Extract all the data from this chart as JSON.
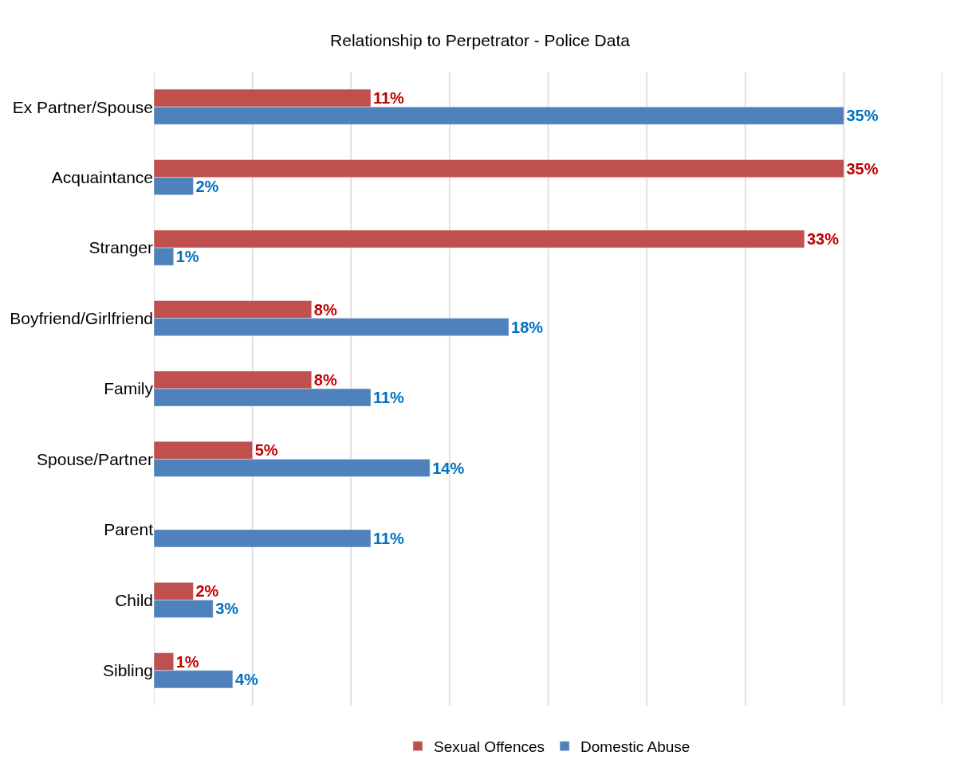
{
  "chart_data": {
    "type": "bar",
    "orientation": "horizontal",
    "title": "Relationship to Perpetrator - Police Data",
    "categories": [
      "Ex Partner/Spouse",
      "Acquaintance",
      "Stranger",
      "Boyfriend/Girlfriend",
      "Family",
      "Spouse/Partner",
      "Parent",
      "Child",
      "Sibling"
    ],
    "series": [
      {
        "name": "Sexual Offences",
        "color": "#c0504d",
        "values": [
          11,
          35,
          33,
          8,
          8,
          5,
          null,
          2,
          1
        ],
        "value_labels": [
          "11%",
          "35%",
          "33%",
          "8%",
          "8%",
          "5%",
          null,
          "2%",
          "1%"
        ]
      },
      {
        "name": "Domestic Abuse",
        "color": "#4f81bd",
        "values": [
          35,
          2,
          1,
          18,
          11,
          14,
          11,
          3,
          4
        ],
        "value_labels": [
          "35%",
          "2%",
          "1%",
          "18%",
          "11%",
          "14%",
          "11%",
          "3%",
          "4%"
        ]
      }
    ],
    "xlim": [
      0,
      40
    ],
    "xticks": [
      {
        "value": 0,
        "label": null
      },
      {
        "value": 5,
        "label": null
      },
      {
        "value": 10,
        "label": null
      },
      {
        "value": 15,
        "label": null
      },
      {
        "value": 20,
        "label": null
      },
      {
        "value": 25,
        "label": null
      },
      {
        "value": 30,
        "label": null
      },
      {
        "value": 35,
        "label": null
      },
      {
        "value": 40,
        "label": null
      }
    ],
    "tick_labels": "y",
    "grid": "x",
    "legend": "bottom"
  }
}
